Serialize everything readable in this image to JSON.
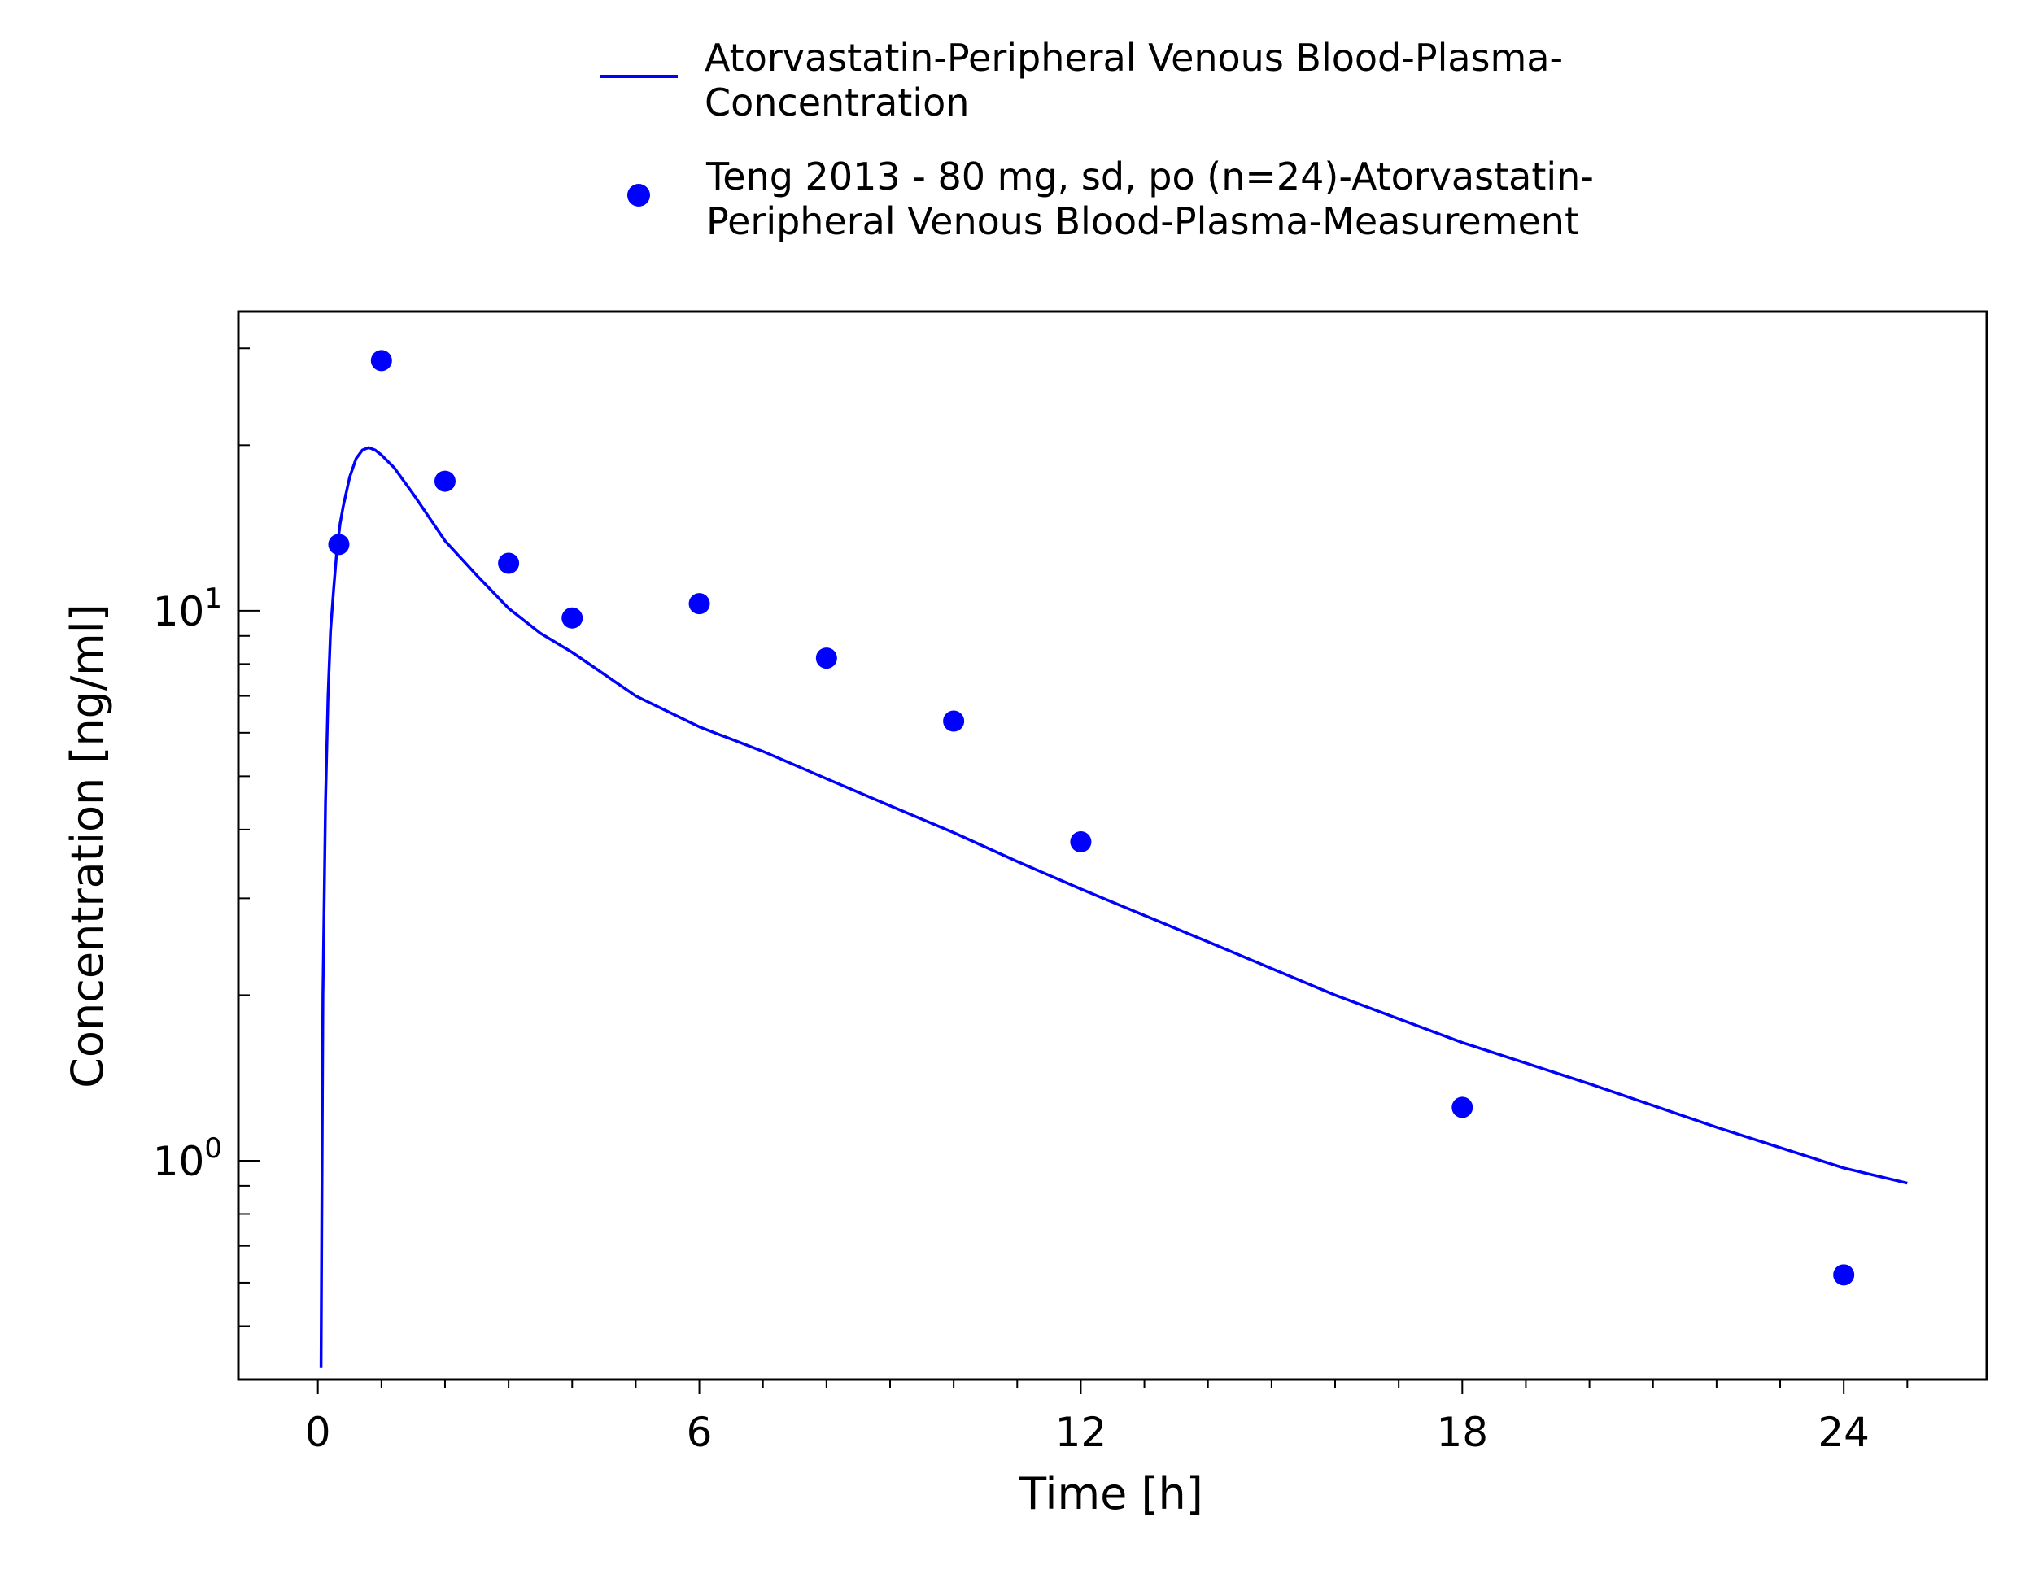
{
  "legend": {
    "entries": [
      {
        "marker": "line",
        "lines": [
          "Atorvastatin-Peripheral Venous Blood-Plasma-",
          "Concentration"
        ]
      },
      {
        "marker": "circle",
        "lines": [
          "Teng 2013 - 80 mg, sd, po (n=24)-Atorvastatin-",
          "Peripheral Venous Blood-Plasma-Measurement"
        ]
      }
    ]
  },
  "chart_data": {
    "type": "line",
    "title": "",
    "xlabel": "Time [h]",
    "ylabel": "Concentration [ng/ml]",
    "x_scale": "linear",
    "y_scale": "log",
    "xlim": [
      -1.25,
      26.25
    ],
    "ylim": [
      0.4,
      35
    ],
    "x_ticks": [
      0,
      6,
      12,
      18,
      24
    ],
    "x_tick_labels": [
      "0",
      "6",
      "12",
      "18",
      "24"
    ],
    "y_ticks": [
      1,
      10
    ],
    "y_tick_labels": [
      {
        "base": "10",
        "exp": "0"
      },
      {
        "base": "10",
        "exp": "1"
      }
    ],
    "grid": false,
    "legend_position": "top-center",
    "series_color": "#0000ff",
    "series": [
      {
        "name": "Atorvastatin-Peripheral Venous Blood-Plasma-Concentration",
        "kind": "line",
        "x": [
          0.05,
          0.08,
          0.12,
          0.16,
          0.2,
          0.25,
          0.3,
          0.35,
          0.4,
          0.5,
          0.6,
          0.7,
          0.8,
          0.9,
          1.0,
          1.2,
          1.5,
          1.8,
          2.0,
          2.5,
          3.0,
          3.5,
          4.0,
          5.0,
          6.0,
          7.0,
          8.0,
          9.0,
          10.0,
          11.0,
          12.0,
          14.0,
          16.0,
          18.0,
          20.0,
          22.0,
          24.0,
          25.0
        ],
        "y": [
          0.42,
          2.0,
          4.5,
          7.0,
          9.2,
          11.0,
          12.9,
          14.4,
          15.5,
          17.5,
          18.9,
          19.6,
          19.8,
          19.6,
          19.2,
          18.2,
          16.3,
          14.5,
          13.4,
          11.6,
          10.1,
          9.1,
          8.4,
          7.0,
          6.15,
          5.55,
          4.95,
          4.42,
          3.95,
          3.5,
          3.12,
          2.5,
          2.0,
          1.64,
          1.38,
          1.15,
          0.97,
          0.91
        ]
      },
      {
        "name": "Teng 2013 - 80 mg, sd, po (n=24)-Atorvastatin-Peripheral Venous Blood-Plasma-Measurement",
        "kind": "scatter",
        "x": [
          0.33,
          1.0,
          2.0,
          3.0,
          4.0,
          6.0,
          8.0,
          10.0,
          12.0,
          18.0,
          24.0
        ],
        "y": [
          13.2,
          28.5,
          17.2,
          12.2,
          9.7,
          10.3,
          8.2,
          6.3,
          3.8,
          1.25,
          0.62
        ]
      }
    ]
  }
}
